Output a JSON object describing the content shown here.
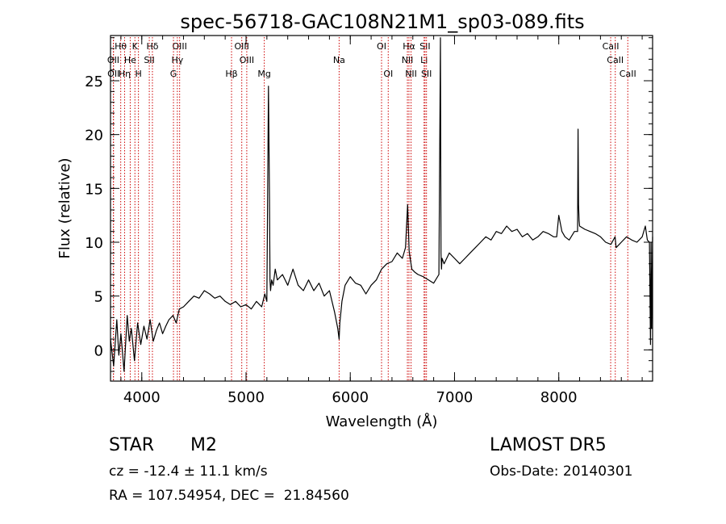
{
  "chart_data": {
    "type": "line",
    "title": "spec-56718-GAC108N21M1_sp03-089.fits",
    "xlabel": "Wavelength (Å)",
    "ylabel": "Flux (relative)",
    "xlim": [
      3700,
      8900
    ],
    "ylim": [
      -2.9,
      29.2
    ],
    "x_ticks": [
      4000,
      5000,
      6000,
      7000,
      8000
    ],
    "x_minor_step": 200,
    "y_ticks": [
      0,
      5,
      10,
      15,
      20,
      25
    ],
    "y_minor_step": 1,
    "grid": false,
    "series": [
      {
        "name": "",
        "color": "#000000",
        "x": [
          3700,
          3730,
          3760,
          3780,
          3800,
          3830,
          3860,
          3880,
          3900,
          3930,
          3960,
          3990,
          4020,
          4050,
          4080,
          4110,
          4140,
          4170,
          4200,
          4230,
          4260,
          4300,
          4330,
          4360,
          4400,
          4450,
          4500,
          4550,
          4600,
          4650,
          4700,
          4750,
          4800,
          4850,
          4900,
          4950,
          5000,
          5050,
          5100,
          5150,
          5180,
          5200,
          5215,
          5225,
          5230,
          5235,
          5245,
          5260,
          5280,
          5300,
          5350,
          5400,
          5450,
          5500,
          5550,
          5600,
          5650,
          5700,
          5750,
          5800,
          5850,
          5880,
          5893,
          5900,
          5920,
          5950,
          6000,
          6050,
          6100,
          6150,
          6200,
          6250,
          6300,
          6350,
          6400,
          6450,
          6500,
          6530,
          6550,
          6565,
          6575,
          6590,
          6620,
          6650,
          6700,
          6750,
          6800,
          6850,
          6865,
          6870,
          6875,
          6880,
          6900,
          6950,
          7000,
          7050,
          7100,
          7150,
          7200,
          7250,
          7300,
          7350,
          7400,
          7450,
          7500,
          7550,
          7600,
          7650,
          7700,
          7750,
          7800,
          7850,
          7900,
          7950,
          7980,
          8000,
          8030,
          8060,
          8100,
          8150,
          8180,
          8185,
          8190,
          8195,
          8200,
          8250,
          8300,
          8350,
          8400,
          8450,
          8500,
          8540,
          8550,
          8600,
          8650,
          8700,
          8750,
          8800,
          8830,
          8850,
          8870,
          8880,
          8885,
          8890,
          8900
        ],
        "y": [
          1.0,
          -1.5,
          2.8,
          -0.5,
          1.5,
          -2.0,
          3.2,
          0.8,
          2.0,
          -1.0,
          2.5,
          0.5,
          2.2,
          1.0,
          2.8,
          0.8,
          1.8,
          2.5,
          1.5,
          2.2,
          2.8,
          3.2,
          2.5,
          3.8,
          4.0,
          4.5,
          5.0,
          4.8,
          5.5,
          5.2,
          4.8,
          5.0,
          4.5,
          4.2,
          4.5,
          4.0,
          4.2,
          3.8,
          4.5,
          4.0,
          5.2,
          4.5,
          24.5,
          14.0,
          6.5,
          5.5,
          6.5,
          6.0,
          7.5,
          6.5,
          7.0,
          6.0,
          7.5,
          6.0,
          5.5,
          6.5,
          5.5,
          6.2,
          5.0,
          5.5,
          3.5,
          2.0,
          1.0,
          2.5,
          4.5,
          6.0,
          6.8,
          6.2,
          6.0,
          5.2,
          6.0,
          6.5,
          7.5,
          8.0,
          8.2,
          9.0,
          8.5,
          9.5,
          13.5,
          9.2,
          8.5,
          7.5,
          7.2,
          7.0,
          6.8,
          6.5,
          6.2,
          7.0,
          29.0,
          9.0,
          7.5,
          8.5,
          8.0,
          9.0,
          8.5,
          8.0,
          8.5,
          9.0,
          9.5,
          10.0,
          10.5,
          10.2,
          11.0,
          10.8,
          11.5,
          11.0,
          11.2,
          10.5,
          10.8,
          10.2,
          10.5,
          11.0,
          10.8,
          10.5,
          10.5,
          12.5,
          11.0,
          10.5,
          10.2,
          11.0,
          11.0,
          20.5,
          13.5,
          12.0,
          11.5,
          11.2,
          11.0,
          10.8,
          10.5,
          10.0,
          9.8,
          10.5,
          9.5,
          10.0,
          10.5,
          10.2,
          10.0,
          10.5,
          11.5,
          10.2,
          10.0,
          0.5,
          10.0,
          2.0,
          10.5
        ]
      }
    ],
    "lines": [
      {
        "label": "Hθ",
        "x": 3798,
        "row": 0,
        "color": "#cc0000"
      },
      {
        "label": "K",
        "x": 3934,
        "row": 0,
        "color": "#cc0000"
      },
      {
        "label": "Hδ",
        "x": 4102,
        "row": 0,
        "color": "#cc0000"
      },
      {
        "label": "OIII",
        "x": 4363,
        "row": 0,
        "color": "#cc0000"
      },
      {
        "label": "OIII",
        "x": 4959,
        "row": 0,
        "color": "#cc0000"
      },
      {
        "label": "OI",
        "x": 6300,
        "row": 0,
        "color": "#cc0000"
      },
      {
        "label": "Hα",
        "x": 6563,
        "row": 0,
        "color": "#cc0000"
      },
      {
        "label": "SII",
        "x": 6717,
        "row": 0,
        "color": "#cc0000"
      },
      {
        "label": "CaII",
        "x": 8498,
        "row": 0,
        "color": "#cc0000"
      },
      {
        "label": "OII",
        "x": 3727,
        "row": 1,
        "color": "#cc0000"
      },
      {
        "label": "He",
        "x": 3889,
        "row": 1,
        "color": "#cc0000"
      },
      {
        "label": "SII",
        "x": 4072,
        "row": 1,
        "color": "#cc0000"
      },
      {
        "label": "Hγ",
        "x": 4341,
        "row": 1,
        "color": "#cc0000"
      },
      {
        "label": "OIII",
        "x": 5007,
        "row": 1,
        "color": "#cc0000"
      },
      {
        "label": "Na",
        "x": 5893,
        "row": 1,
        "color": "#cc0000"
      },
      {
        "label": "NII",
        "x": 6548,
        "row": 1,
        "color": "#cc0000"
      },
      {
        "label": "Li",
        "x": 6708,
        "row": 1,
        "color": "#cc0000"
      },
      {
        "label": "CaII",
        "x": 8542,
        "row": 1,
        "color": "#cc0000"
      },
      {
        "label": "OII",
        "x": 3729,
        "row": 2,
        "color": "#cc0000"
      },
      {
        "label": "Hη",
        "x": 3835,
        "row": 2,
        "color": "#cc0000"
      },
      {
        "label": "H",
        "x": 3968,
        "row": 2,
        "color": "#cc0000"
      },
      {
        "label": "G",
        "x": 4304,
        "row": 2,
        "color": "#cc0000"
      },
      {
        "label": "Hβ",
        "x": 4861,
        "row": 2,
        "color": "#cc0000"
      },
      {
        "label": "Mg",
        "x": 5175,
        "row": 2,
        "color": "#cc0000"
      },
      {
        "label": "OI",
        "x": 6364,
        "row": 2,
        "color": "#cc0000"
      },
      {
        "label": "NII",
        "x": 6583,
        "row": 2,
        "color": "#cc0000"
      },
      {
        "label": "SII",
        "x": 6731,
        "row": 2,
        "color": "#cc0000"
      },
      {
        "label": "CaII",
        "x": 8662,
        "row": 2,
        "color": "#cc0000"
      }
    ]
  },
  "info": {
    "object_class": "STAR",
    "subclass": "M2",
    "survey": "LAMOST DR5",
    "cz": "cz = -12.4 ± 11.1 km/s",
    "obs_date": "Obs-Date: 20140301",
    "coords": "RA = 107.54954, DEC =  21.84560"
  }
}
